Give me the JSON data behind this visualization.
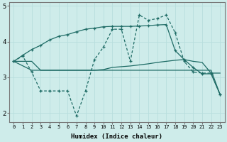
{
  "xlabel": "Humidex (Indice chaleur)",
  "background_color": "#ceecea",
  "grid_color": "#b8dedd",
  "line_color": "#1e6b65",
  "xlim": [
    -0.5,
    23.5
  ],
  "ylim": [
    1.75,
    5.1
  ],
  "xticks": [
    0,
    1,
    2,
    3,
    4,
    5,
    6,
    7,
    8,
    9,
    10,
    11,
    12,
    13,
    14,
    15,
    16,
    17,
    18,
    19,
    20,
    21,
    22,
    23
  ],
  "yticks": [
    2,
    3,
    4,
    5
  ],
  "line_upper_x": [
    0,
    1,
    2,
    3,
    4,
    5,
    6,
    7,
    8,
    9,
    10,
    11,
    12,
    13,
    14,
    15,
    16,
    17,
    18,
    19,
    20,
    21,
    22,
    23
  ],
  "line_upper_y": [
    3.45,
    3.62,
    3.78,
    3.9,
    4.05,
    4.15,
    4.2,
    4.28,
    4.35,
    4.38,
    4.42,
    4.43,
    4.43,
    4.43,
    4.44,
    4.45,
    4.47,
    4.48,
    3.75,
    3.5,
    3.28,
    3.1,
    3.1,
    2.52
  ],
  "line_jagged_x": [
    0,
    1,
    2,
    3,
    4,
    5,
    6,
    7,
    8,
    9,
    10,
    11,
    12,
    13,
    14,
    15,
    16,
    17,
    18,
    19,
    20,
    21,
    22,
    23
  ],
  "line_jagged_y": [
    3.45,
    3.6,
    3.15,
    2.62,
    2.62,
    2.62,
    2.62,
    1.92,
    2.62,
    3.5,
    3.85,
    4.35,
    4.35,
    3.45,
    4.75,
    4.6,
    4.65,
    4.75,
    4.25,
    3.45,
    3.15,
    3.12,
    3.12,
    2.52
  ],
  "line_mid_x": [
    0,
    1,
    2,
    3,
    4,
    5,
    6,
    7,
    8,
    9,
    10,
    11,
    12,
    13,
    14,
    15,
    16,
    17,
    18,
    19,
    20,
    21,
    22,
    23
  ],
  "line_mid_y": [
    3.45,
    3.45,
    3.45,
    3.2,
    3.2,
    3.2,
    3.2,
    3.2,
    3.2,
    3.2,
    3.22,
    3.28,
    3.3,
    3.32,
    3.35,
    3.38,
    3.42,
    3.45,
    3.48,
    3.5,
    3.45,
    3.42,
    3.12,
    3.12
  ],
  "line_lower_x": [
    0,
    2,
    3,
    4,
    5,
    6,
    7,
    8,
    9,
    10,
    11,
    12,
    13,
    14,
    15,
    16,
    17,
    18,
    19,
    20,
    21,
    22,
    23
  ],
  "line_lower_y": [
    3.45,
    3.2,
    3.2,
    3.2,
    3.2,
    3.2,
    3.2,
    3.2,
    3.2,
    3.2,
    3.2,
    3.2,
    3.2,
    3.2,
    3.2,
    3.2,
    3.2,
    3.2,
    3.2,
    3.2,
    3.2,
    3.2,
    2.52
  ]
}
